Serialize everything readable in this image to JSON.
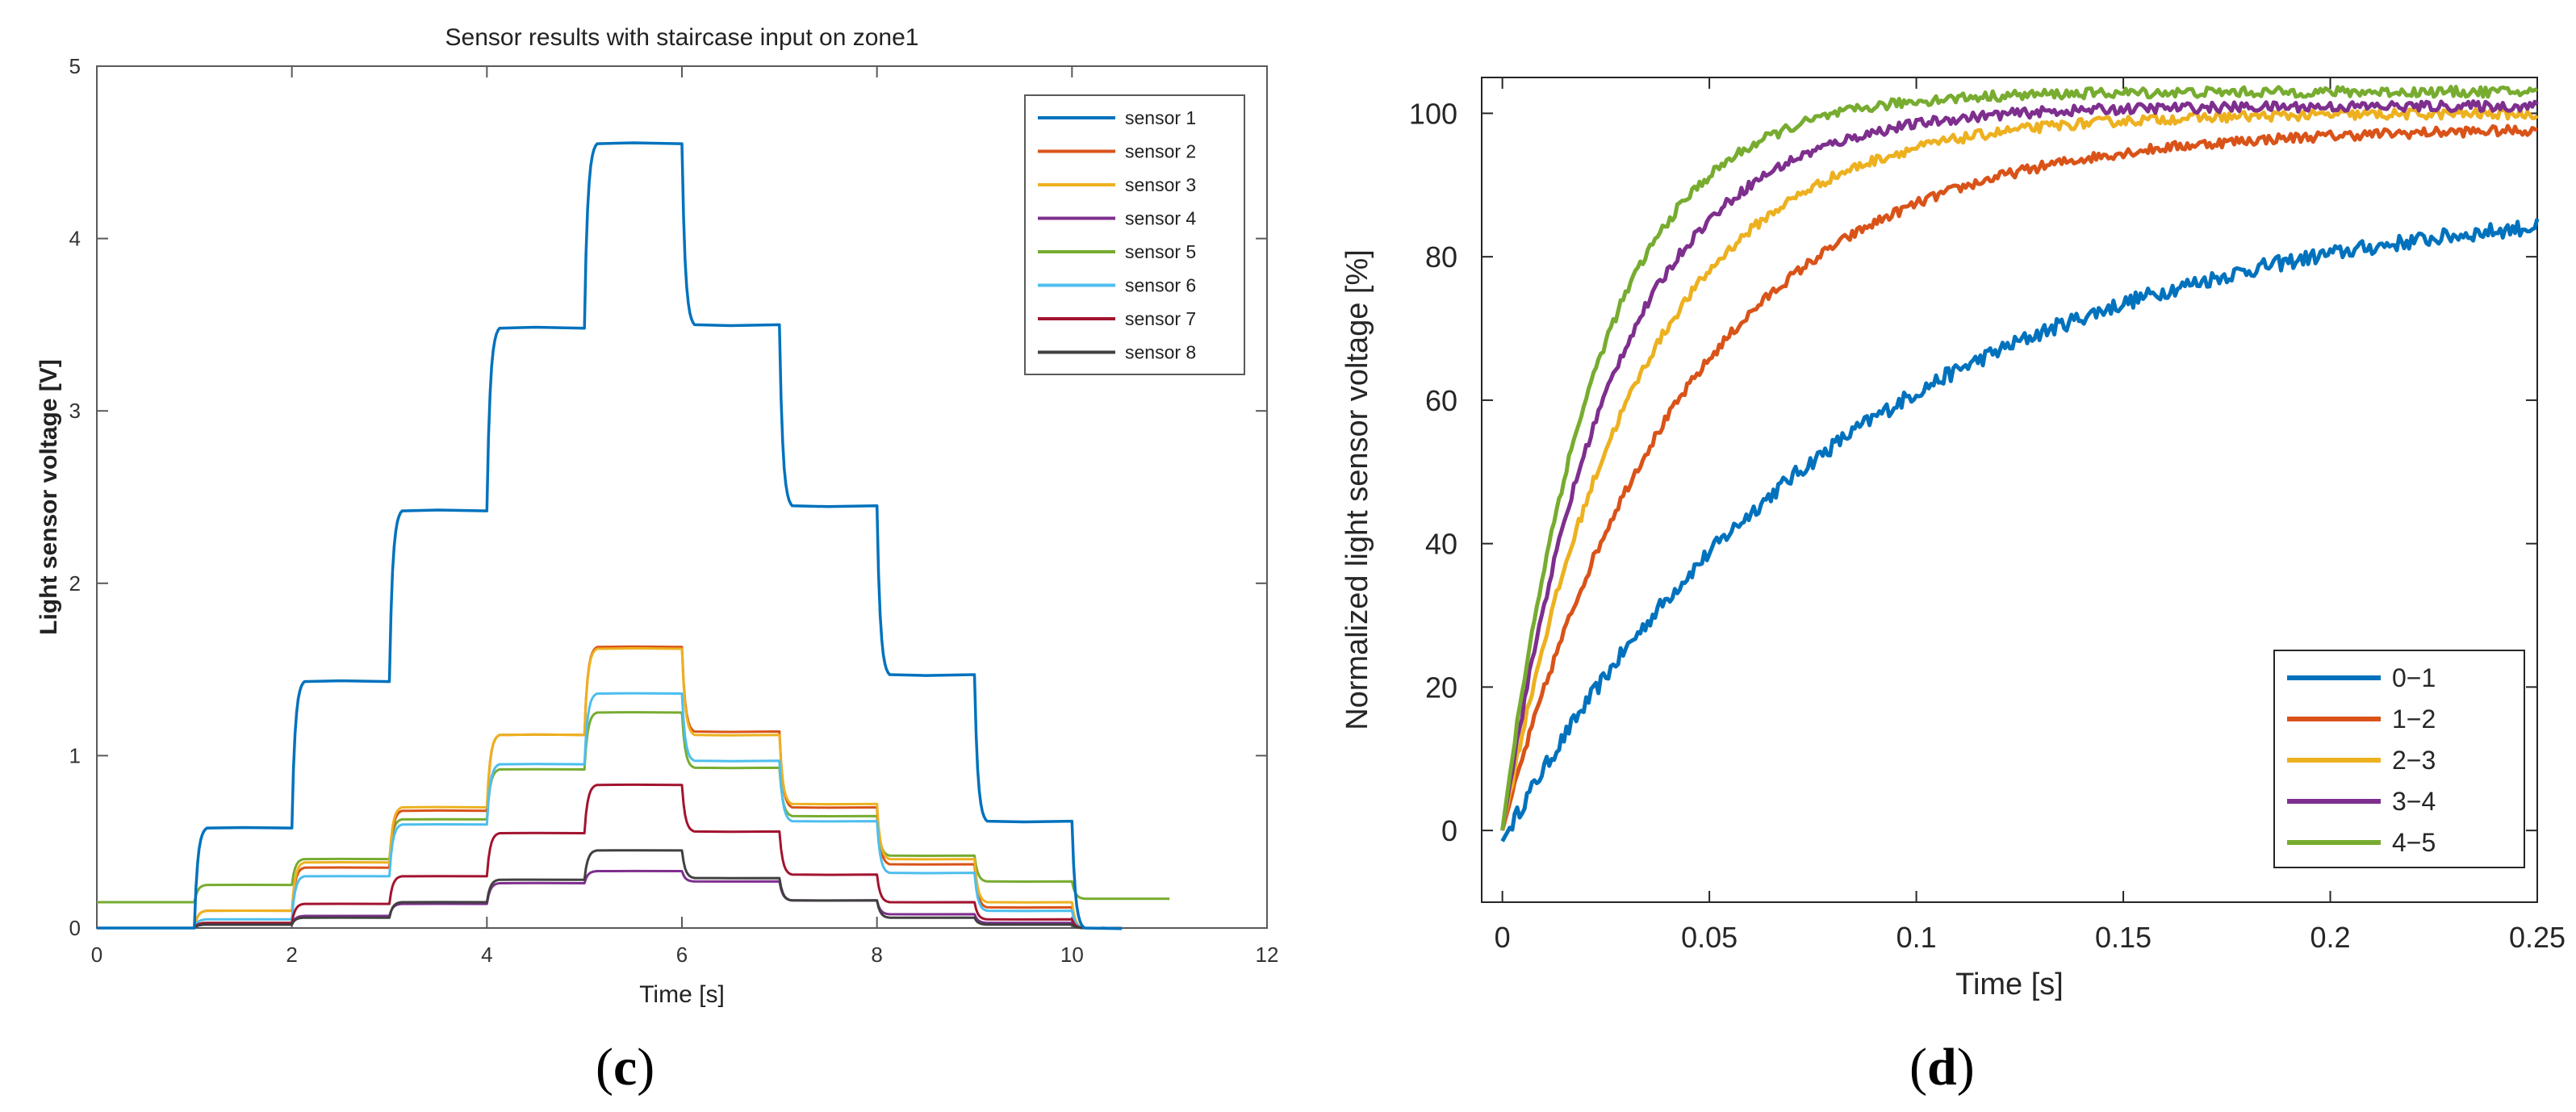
{
  "chart_data": [
    {
      "id": "c",
      "type": "line",
      "title": "Sensor results with staircase input on zone1",
      "xlabel": "Time [s]",
      "ylabel": "Light sensor voltage [V]",
      "xlim": [
        0,
        12
      ],
      "ylim": [
        0,
        5
      ],
      "xticks": [
        0,
        2,
        4,
        6,
        8,
        10,
        12
      ],
      "yticks": [
        0,
        1,
        2,
        3,
        4,
        5
      ],
      "legend_position": "top-right",
      "step_times": [
        1,
        2,
        3,
        4,
        5,
        6,
        7,
        8,
        9,
        10
      ],
      "series": [
        {
          "name": "sensor 1",
          "color": "#0072BD",
          "base": 0.0,
          "levels": [
            0.0,
            0.58,
            1.43,
            2.42,
            3.48,
            4.55,
            3.5,
            2.45,
            1.47,
            0.62,
            0.0
          ],
          "end": 10.3
        },
        {
          "name": "sensor 2",
          "color": "#D95319",
          "base": 0.0,
          "levels": [
            0.0,
            0.1,
            0.35,
            0.68,
            1.12,
            1.63,
            1.14,
            0.7,
            0.37,
            0.12,
            0.0
          ],
          "end": 10.3
        },
        {
          "name": "sensor 3",
          "color": "#EDB120",
          "base": 0.0,
          "levels": [
            0.0,
            0.1,
            0.38,
            0.7,
            1.12,
            1.62,
            1.12,
            0.72,
            0.4,
            0.15,
            0.0
          ],
          "end": 10.3
        },
        {
          "name": "sensor 4",
          "color": "#7E2F8E",
          "base": 0.0,
          "levels": [
            0.0,
            0.02,
            0.07,
            0.14,
            0.26,
            0.33,
            0.27,
            0.16,
            0.08,
            0.03,
            0.0
          ],
          "end": 10.3
        },
        {
          "name": "sensor 5",
          "color": "#77AC30",
          "base": 0.15,
          "levels": [
            0.15,
            0.25,
            0.4,
            0.63,
            0.92,
            1.25,
            0.93,
            0.65,
            0.42,
            0.27,
            0.17
          ],
          "end": 11.0
        },
        {
          "name": "sensor 6",
          "color": "#4DBEEE",
          "base": 0.0,
          "levels": [
            0.0,
            0.05,
            0.3,
            0.6,
            0.95,
            1.36,
            0.97,
            0.62,
            0.32,
            0.1,
            0.0
          ],
          "end": 10.3
        },
        {
          "name": "sensor 7",
          "color": "#A2142F",
          "base": 0.0,
          "levels": [
            0.0,
            0.03,
            0.14,
            0.3,
            0.55,
            0.83,
            0.56,
            0.31,
            0.15,
            0.05,
            0.0
          ],
          "end": 10.3
        },
        {
          "name": "sensor 8",
          "color": "#404040",
          "base": 0.0,
          "levels": [
            0.0,
            0.02,
            0.06,
            0.15,
            0.28,
            0.45,
            0.29,
            0.16,
            0.06,
            0.02,
            0.0
          ],
          "end": 10.3
        }
      ]
    },
    {
      "id": "d",
      "type": "line",
      "title": "",
      "xlabel": "Time [s]",
      "ylabel": "Normalized light sensor voltage [%]",
      "xlim": [
        -0.005,
        0.25
      ],
      "ylim": [
        -10,
        105
      ],
      "xticks": [
        0,
        0.05,
        0.1,
        0.15,
        0.2,
        0.25
      ],
      "xtick_labels": [
        "0",
        "0.05",
        "0.1",
        "0.15",
        "0.2",
        "0.25"
      ],
      "yticks": [
        0,
        20,
        40,
        60,
        80,
        100
      ],
      "legend_position": "bottom-right",
      "series": [
        {
          "name": "0−1",
          "color": "#0072BD",
          "start": -1.5,
          "final": 89,
          "tau": 0.085
        },
        {
          "name": "1−2",
          "color": "#D95319",
          "start": 0,
          "final": 98,
          "tau": 0.045
        },
        {
          "name": "2−3",
          "color": "#EDB120",
          "start": 0,
          "final": 100,
          "tau": 0.033
        },
        {
          "name": "3−4",
          "color": "#7E2F8E",
          "start": 0,
          "final": 101,
          "tau": 0.027
        },
        {
          "name": "4−5",
          "color": "#77AC30",
          "start": 0,
          "final": 103,
          "tau": 0.023
        }
      ]
    }
  ],
  "captions": {
    "c_open": "(",
    "c_letter": "c",
    "c_close": ")",
    "d_open": "(",
    "d_letter": "d",
    "d_close": ")"
  }
}
